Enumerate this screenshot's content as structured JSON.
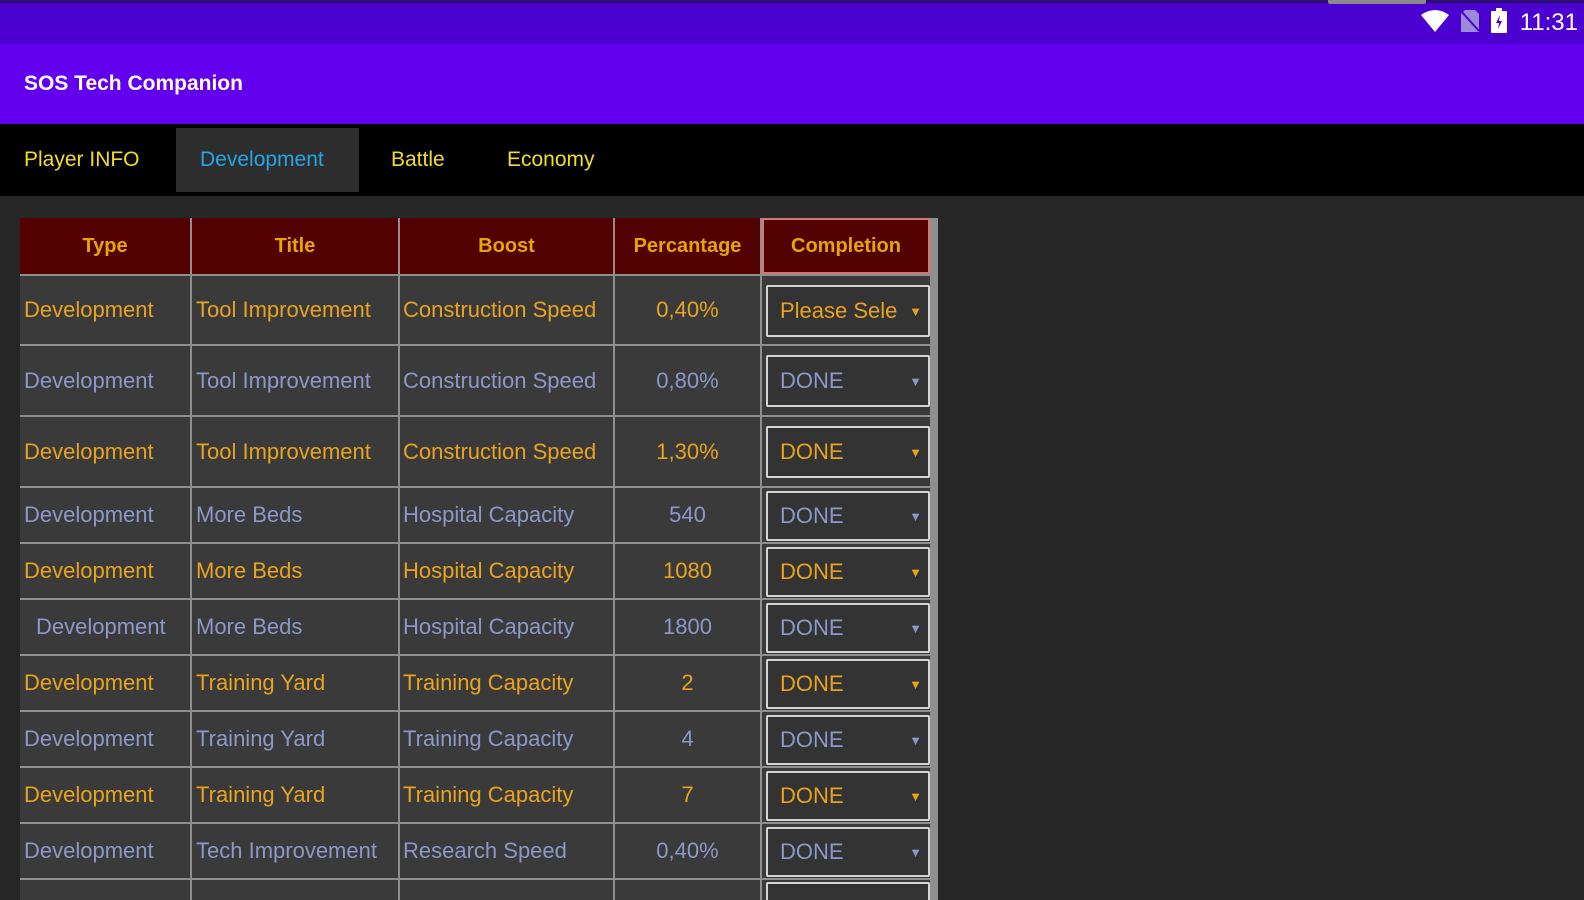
{
  "status_bar": {
    "time": "11:31",
    "icons": [
      "wifi-icon",
      "no-sim-icon",
      "battery-icon"
    ]
  },
  "app": {
    "title": "SOS Tech Companion"
  },
  "tabs": [
    {
      "label": "Player INFO"
    },
    {
      "label": "Development",
      "active": true
    },
    {
      "label": "Battle"
    },
    {
      "label": "Economy"
    }
  ],
  "table": {
    "headers": [
      "Type",
      "Title",
      "Boost",
      "Percantage",
      "Completion"
    ],
    "rows": [
      {
        "type": "Development",
        "title": "Tool Improvement",
        "boost": "Construction Speed",
        "percentage": "0,40%",
        "completion": "Please Sele"
      },
      {
        "type": "Development",
        "title": "Tool Improvement",
        "boost": "Construction Speed",
        "percentage": "0,80%",
        "completion": "DONE"
      },
      {
        "type": "Development",
        "title": "Tool Improvement",
        "boost": "Construction Speed",
        "percentage": "1,30%",
        "completion": "DONE"
      },
      {
        "type": "Development",
        "title": "More Beds",
        "boost": "Hospital Capacity",
        "percentage": "540",
        "completion": "DONE"
      },
      {
        "type": "Development",
        "title": "More Beds",
        "boost": "Hospital Capacity",
        "percentage": "1080",
        "completion": "DONE"
      },
      {
        "type": "Development",
        "title": "More Beds",
        "boost": "Hospital Capacity",
        "percentage": "1800",
        "completion": "DONE"
      },
      {
        "type": "Development",
        "title": "Training Yard",
        "boost": "Training Capacity",
        "percentage": "2",
        "completion": "DONE"
      },
      {
        "type": "Development",
        "title": "Training Yard",
        "boost": "Training Capacity",
        "percentage": "4",
        "completion": "DONE"
      },
      {
        "type": "Development",
        "title": "Training Yard",
        "boost": "Training Capacity",
        "percentage": "7",
        "completion": "DONE"
      },
      {
        "type": "Development",
        "title": "Tech Improvement",
        "boost": "Research Speed",
        "percentage": "0,40%",
        "completion": "DONE"
      },
      {
        "type": "",
        "title": "",
        "boost": "",
        "percentage": "",
        "completion": ""
      }
    ]
  },
  "colors": {
    "status_bar": "#4b01d0",
    "app_bar": "#6200ee",
    "header_bg": "#520000",
    "header_text": "#e8a500",
    "row_gold": "#e8a31f",
    "row_blue": "#8c98c7",
    "tab_text": "#f2dc2c",
    "tab_active": "#23a6e8"
  }
}
